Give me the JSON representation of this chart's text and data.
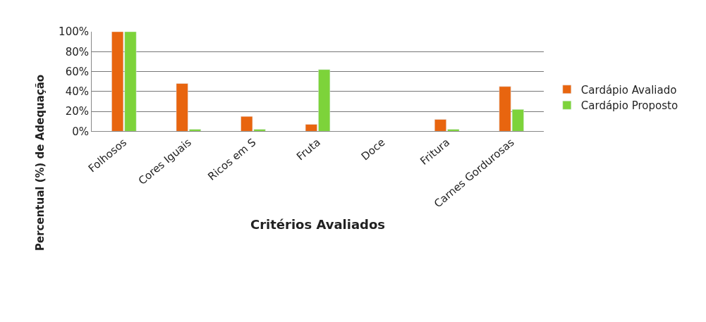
{
  "chart_data": {
    "type": "bar",
    "xlabel": "Critérios Avaliados",
    "ylabel": "Percentual (%) de Adequação",
    "categories": [
      "Folhosos",
      "Cores Iguais",
      "Ricos em S",
      "Fruta",
      "Doce",
      "Fritura",
      "Carnes Gordurosas"
    ],
    "series": [
      {
        "name": "Cardápio Avaliado",
        "color": "#e8650f",
        "values": [
          100,
          48,
          15,
          7,
          null,
          12,
          45
        ]
      },
      {
        "name": "Cardápio Proposto",
        "color": "#7dd33a",
        "values": [
          100,
          2,
          2,
          62,
          null,
          2,
          22
        ]
      }
    ],
    "ylim": [
      0,
      100
    ],
    "yticks": [
      {
        "value": 0,
        "label": "0%"
      },
      {
        "value": 20,
        "label": "20%"
      },
      {
        "value": 40,
        "label": "40%"
      },
      {
        "value": 60,
        "label": "60%"
      },
      {
        "value": 80,
        "label": "80%"
      },
      {
        "value": 100,
        "label": "100%"
      }
    ],
    "grid": "y",
    "legend": "right"
  }
}
